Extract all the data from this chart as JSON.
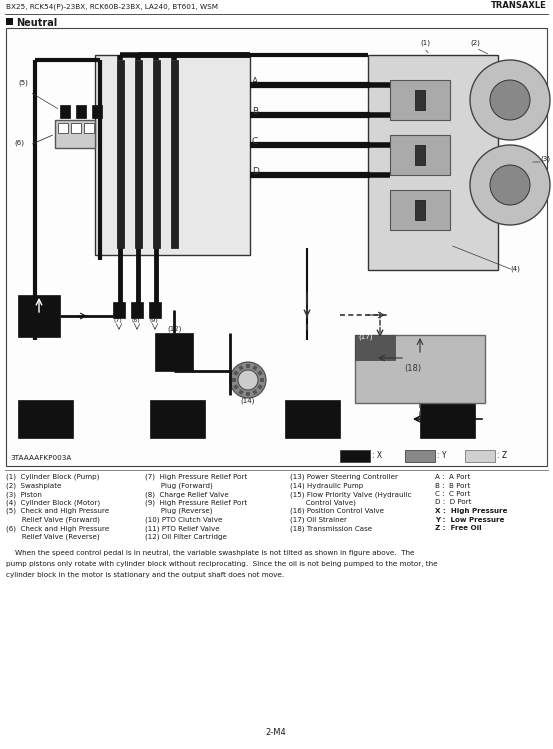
{
  "header_left": "BX25, RCK54(P)-23BX, RCK60B-23BX, LA240, BT601, WSM",
  "header_right": "TRANSAXLE",
  "section_marker": "■",
  "section_title": "Neutral",
  "diagram_label": "3TAAAAFKP003A",
  "page_number": "2-M4",
  "bg_color": "#ffffff",
  "text_color": "#1a1a1a",
  "callouts_col1": [
    "(1)  Cylinder Block (Pump)",
    "(2)  Swashplate",
    "(3)  Piston",
    "(4)  Cylinder Block (Motor)",
    "(5)  Check and High Pressure",
    "       Relief Valve (Forward)",
    "(6)  Check and High Pressure",
    "       Relief Valve (Reverse)"
  ],
  "callouts_col2": [
    "(7)  High Pressure Relief Port",
    "       Plug (Forward)",
    "(8)  Charge Relief Valve",
    "(9)  High Pressure Relief Port",
    "       Plug (Reverse)",
    "(10) PTO Clutch Valve",
    "(11) PTO Relief Valve",
    "(12) Oil Filter Cartridge"
  ],
  "callouts_col3": [
    "(13) Power Steering Controller",
    "(14) Hydraulic Pump",
    "(15) Flow Priority Valve (Hydraulic",
    "       Control Valve)",
    "(16) Position Control Valve",
    "(17) Oil Strainer",
    "(18) Transmission Case"
  ],
  "callouts_col4_normal": [
    "A :  A Port",
    "B :  B Port",
    "C :  C Port",
    "D :  D Port"
  ],
  "callouts_col4_bold": [
    "X :  High Pressure",
    "Y :  Low Pressure",
    "Z :  Free Oil"
  ],
  "paragraph_lines": [
    "    When the speed control pedal is in neutral, the variable swashplate is not tilted as shown in figure above.  The",
    "pump pistons only rotate with cylinder block without reciprocating.  Since the oil is not being pumped to the motor, the",
    "cylinder block in the motor is stationary and the output shaft does not move."
  ]
}
